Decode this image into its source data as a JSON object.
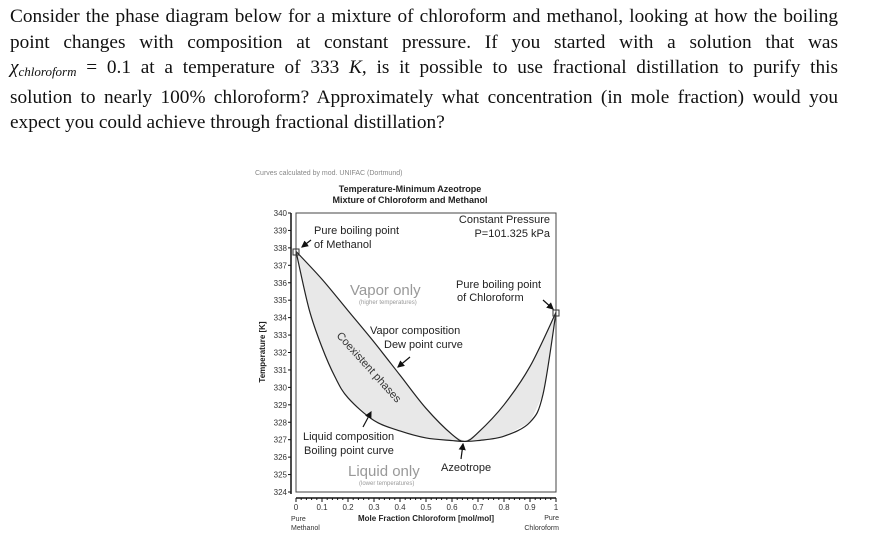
{
  "question": {
    "lines": [
      "Consider the phase diagram below for a mixture of chloroform and methanol, looking at how the boiling",
      "point changes with composition at constant pressure. If you started with a solution that was",
      "",
      "solution to nearly 100% chloroform? Approximately what concentration (in mole fraction) would you",
      "expect you could achieve through fractional distillation?"
    ],
    "line3": {
      "var": "χ",
      "sub": "chloroform",
      "eq": " = 0.1 at a temperature of 333 ",
      "unit": "K",
      "rest": ", is it possible to use fractional distillation to purify this"
    }
  },
  "chart_data": {
    "type": "line",
    "credit": "Curves calculated by mod. UNIFAC (Dortmund)",
    "title": [
      "Temperature-Minimum Azeotrope",
      "Mixture of Chloroform and Methanol"
    ],
    "xlabel": "Mole Fraction Chloroform [mol/mol]",
    "ylabel": "Temperature [K]",
    "xlim": [
      0,
      1
    ],
    "ylim": [
      324,
      340
    ],
    "x_ticks": [
      "0",
      "0.1",
      "0.2",
      "0.3",
      "0.4",
      "0.5",
      "0.6",
      "0.7",
      "0.8",
      "0.9",
      "1"
    ],
    "y_ticks": [
      "340",
      "339",
      "338",
      "337",
      "336",
      "335",
      "334",
      "333",
      "332",
      "331",
      "330",
      "329",
      "328",
      "327",
      "326",
      "325",
      "324"
    ],
    "x_left_label": [
      "Pure",
      "Methanol"
    ],
    "x_right_label": [
      "Pure",
      "Chloroform"
    ],
    "grid": false,
    "series": [
      {
        "name": "Liquid composition Boiling point curve",
        "x": [
          0,
          0.05,
          0.1,
          0.15,
          0.2,
          0.3,
          0.4,
          0.5,
          0.6,
          0.65,
          0.7,
          0.8,
          0.9,
          0.95,
          1.0
        ],
        "y": [
          337.8,
          334.5,
          332.3,
          330.6,
          329.4,
          328.1,
          327.5,
          327.1,
          326.95,
          326.9,
          326.95,
          327.2,
          328.0,
          329.6,
          334.3
        ]
      },
      {
        "name": "Vapor composition Dew point curve",
        "x": [
          0,
          0.1,
          0.2,
          0.3,
          0.4,
          0.5,
          0.6,
          0.65,
          0.7,
          0.8,
          0.9,
          1.0
        ],
        "y": [
          337.8,
          336.2,
          334.4,
          332.6,
          330.7,
          328.8,
          327.3,
          326.9,
          327.4,
          329.0,
          331.2,
          334.3
        ]
      }
    ],
    "fill_color": "#e8e8e8",
    "annotations": {
      "constant_pressure": [
        "Constant Pressure",
        "P=101.325 kPa"
      ],
      "methanol_bp": [
        "Pure boiling point",
        "of Methanol"
      ],
      "chloroform_bp": [
        "Pure boiling point",
        "of Chloroform"
      ],
      "vapor_only": "Vapor only",
      "vapor_only_sub": "(higher temperatures)",
      "dew": [
        "Vapor composition",
        "Dew point curve"
      ],
      "coexistent": "Coexistent phases",
      "liquid": [
        "Liquid composition",
        "Boiling point curve"
      ],
      "liquid_only": "Liquid only",
      "liquid_only_sub": "(lower temperatures)",
      "azeotrope": "Azeotrope"
    }
  }
}
